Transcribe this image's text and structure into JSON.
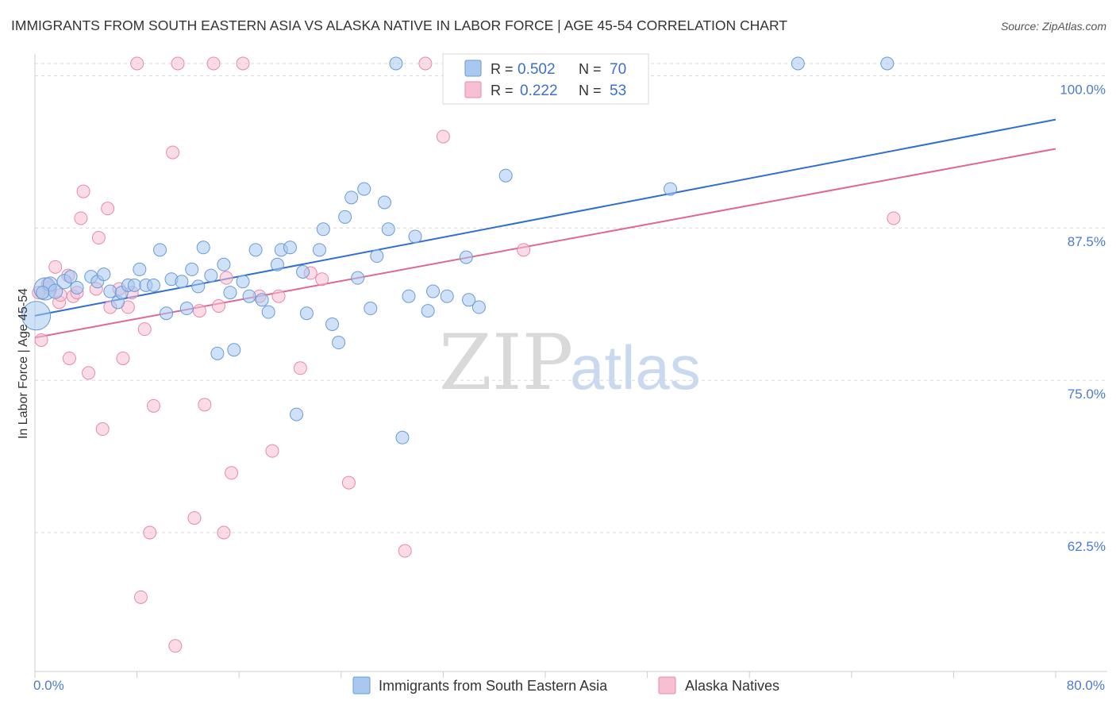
{
  "header": {
    "title": "IMMIGRANTS FROM SOUTH EASTERN ASIA VS ALASKA NATIVE IN LABOR FORCE | AGE 45-54 CORRELATION CHART",
    "source": "Source: ZipAtlas.com"
  },
  "watermark": {
    "zip": "ZIP",
    "atlas": "atlas"
  },
  "colors": {
    "blue": "#a8c8f0",
    "blue_edge": "#6a9ad8",
    "blue_line": "#2f6fd0",
    "pink": "#f7bfd2",
    "pink_edge": "#e58aaa",
    "pink_line": "#e06890",
    "grid": "#d8d8d8",
    "tick_text": "#4a7bd0"
  },
  "legend": {
    "rows": [
      {
        "r_label": "R =",
        "r_value": "0.502",
        "n_label": "N =",
        "n_value": "70"
      },
      {
        "r_label": "R =",
        "r_value": "0.222",
        "n_label": "N =",
        "n_value": "53"
      }
    ]
  },
  "chart_data": {
    "type": "scatter",
    "title": "IMMIGRANTS FROM SOUTH EASTERN ASIA VS ALASKA NATIVE IN LABOR FORCE | AGE 45-54 CORRELATION CHART",
    "xlabel": "",
    "ylabel": "In Labor Force | Age 45-54",
    "xlim": [
      0,
      80
    ],
    "ylim": [
      50,
      101.5
    ],
    "x_tick_labels": [
      "0.0%",
      "80.0%"
    ],
    "y_ticks": [
      62.5,
      75.0,
      87.5,
      100.0
    ],
    "y_tick_labels": [
      "62.5%",
      "75.0%",
      "87.5%",
      "100.0%"
    ],
    "grid": true,
    "legend_position": "top-center",
    "series": [
      {
        "name": "Immigrants from South Eastern Asia",
        "r": 0.502,
        "n": 70,
        "trend": {
          "x": [
            0,
            80
          ],
          "y": [
            80.3,
            96.4
          ]
        },
        "points": [
          {
            "x": 0.1,
            "y": 80.3,
            "s": 18
          },
          {
            "x": 0.8,
            "y": 82.5,
            "s": 14
          },
          {
            "x": 1.2,
            "y": 82.9,
            "s": 9
          },
          {
            "x": 1.6,
            "y": 82.3,
            "s": 9
          },
          {
            "x": 2.3,
            "y": 83.1,
            "s": 9
          },
          {
            "x": 2.8,
            "y": 83.5,
            "s": 8
          },
          {
            "x": 3.3,
            "y": 82.6,
            "s": 8
          },
          {
            "x": 4.4,
            "y": 83.5,
            "s": 8
          },
          {
            "x": 4.9,
            "y": 83.1,
            "s": 8
          },
          {
            "x": 5.4,
            "y": 83.7,
            "s": 8
          },
          {
            "x": 5.9,
            "y": 82.3,
            "s": 8
          },
          {
            "x": 6.5,
            "y": 81.4,
            "s": 8
          },
          {
            "x": 6.8,
            "y": 82.2,
            "s": 8
          },
          {
            "x": 7.3,
            "y": 82.8,
            "s": 8
          },
          {
            "x": 7.8,
            "y": 82.8,
            "s": 8
          },
          {
            "x": 8.2,
            "y": 84.1,
            "s": 8
          },
          {
            "x": 8.7,
            "y": 82.8,
            "s": 8
          },
          {
            "x": 9.3,
            "y": 82.8,
            "s": 8
          },
          {
            "x": 9.8,
            "y": 85.7,
            "s": 8
          },
          {
            "x": 10.3,
            "y": 80.5,
            "s": 8
          },
          {
            "x": 10.7,
            "y": 83.3,
            "s": 8
          },
          {
            "x": 11.5,
            "y": 83.1,
            "s": 8
          },
          {
            "x": 11.9,
            "y": 80.9,
            "s": 8
          },
          {
            "x": 12.3,
            "y": 84.1,
            "s": 8
          },
          {
            "x": 12.8,
            "y": 82.7,
            "s": 8
          },
          {
            "x": 13.2,
            "y": 85.9,
            "s": 8
          },
          {
            "x": 13.8,
            "y": 83.6,
            "s": 8
          },
          {
            "x": 14.3,
            "y": 77.2,
            "s": 8
          },
          {
            "x": 14.8,
            "y": 84.5,
            "s": 8
          },
          {
            "x": 15.3,
            "y": 82.2,
            "s": 8
          },
          {
            "x": 15.6,
            "y": 77.5,
            "s": 8
          },
          {
            "x": 16.3,
            "y": 83.1,
            "s": 8
          },
          {
            "x": 16.8,
            "y": 81.9,
            "s": 8
          },
          {
            "x": 17.3,
            "y": 85.7,
            "s": 8
          },
          {
            "x": 17.8,
            "y": 81.6,
            "s": 8
          },
          {
            "x": 18.3,
            "y": 80.6,
            "s": 8
          },
          {
            "x": 19.0,
            "y": 84.5,
            "s": 8
          },
          {
            "x": 19.3,
            "y": 85.7,
            "s": 8
          },
          {
            "x": 20.0,
            "y": 85.9,
            "s": 8
          },
          {
            "x": 20.5,
            "y": 72.2,
            "s": 8
          },
          {
            "x": 21.0,
            "y": 83.9,
            "s": 8
          },
          {
            "x": 21.3,
            "y": 80.5,
            "s": 8
          },
          {
            "x": 22.3,
            "y": 85.7,
            "s": 8
          },
          {
            "x": 22.6,
            "y": 87.4,
            "s": 8
          },
          {
            "x": 23.3,
            "y": 79.6,
            "s": 8
          },
          {
            "x": 23.8,
            "y": 78.1,
            "s": 8
          },
          {
            "x": 24.3,
            "y": 88.4,
            "s": 8
          },
          {
            "x": 24.8,
            "y": 90.0,
            "s": 8
          },
          {
            "x": 25.3,
            "y": 83.4,
            "s": 8
          },
          {
            "x": 25.8,
            "y": 90.7,
            "s": 8
          },
          {
            "x": 26.3,
            "y": 80.9,
            "s": 8
          },
          {
            "x": 26.8,
            "y": 85.2,
            "s": 8
          },
          {
            "x": 27.4,
            "y": 89.6,
            "s": 8
          },
          {
            "x": 27.7,
            "y": 87.4,
            "s": 8
          },
          {
            "x": 28.3,
            "y": 101.0,
            "s": 8
          },
          {
            "x": 28.8,
            "y": 70.3,
            "s": 8
          },
          {
            "x": 29.3,
            "y": 81.9,
            "s": 8
          },
          {
            "x": 29.8,
            "y": 86.8,
            "s": 8
          },
          {
            "x": 30.8,
            "y": 80.7,
            "s": 8
          },
          {
            "x": 31.2,
            "y": 82.3,
            "s": 8
          },
          {
            "x": 32.3,
            "y": 81.9,
            "s": 8
          },
          {
            "x": 32.6,
            "y": 101.0,
            "s": 8
          },
          {
            "x": 33.8,
            "y": 85.1,
            "s": 8
          },
          {
            "x": 34.0,
            "y": 81.6,
            "s": 8
          },
          {
            "x": 34.8,
            "y": 81.0,
            "s": 8
          },
          {
            "x": 36.9,
            "y": 91.8,
            "s": 8
          },
          {
            "x": 49.8,
            "y": 90.7,
            "s": 8
          },
          {
            "x": 59.8,
            "y": 101.0,
            "s": 8
          },
          {
            "x": 66.8,
            "y": 101.0,
            "s": 8
          },
          {
            "x": 0.6,
            "y": 82.2,
            "s": 8
          }
        ]
      },
      {
        "name": "Alaska Natives",
        "r": 0.222,
        "n": 53,
        "trend": {
          "x": [
            0,
            80
          ],
          "y": [
            78.5,
            94.0
          ]
        },
        "points": [
          {
            "x": 0.5,
            "y": 78.3,
            "s": 8
          },
          {
            "x": 1.1,
            "y": 82.6,
            "s": 8
          },
          {
            "x": 1.6,
            "y": 84.3,
            "s": 8
          },
          {
            "x": 1.9,
            "y": 81.4,
            "s": 8
          },
          {
            "x": 2.6,
            "y": 83.6,
            "s": 8
          },
          {
            "x": 2.7,
            "y": 76.8,
            "s": 8
          },
          {
            "x": 3.0,
            "y": 81.9,
            "s": 8
          },
          {
            "x": 3.3,
            "y": 82.2,
            "s": 8
          },
          {
            "x": 3.6,
            "y": 88.3,
            "s": 8
          },
          {
            "x": 3.8,
            "y": 90.5,
            "s": 8
          },
          {
            "x": 4.2,
            "y": 75.6,
            "s": 8
          },
          {
            "x": 4.8,
            "y": 82.5,
            "s": 8
          },
          {
            "x": 5.0,
            "y": 86.7,
            "s": 8
          },
          {
            "x": 5.3,
            "y": 71.0,
            "s": 8
          },
          {
            "x": 5.7,
            "y": 89.1,
            "s": 8
          },
          {
            "x": 5.9,
            "y": 81.0,
            "s": 8
          },
          {
            "x": 6.6,
            "y": 82.5,
            "s": 8
          },
          {
            "x": 6.9,
            "y": 76.8,
            "s": 8
          },
          {
            "x": 7.3,
            "y": 81.0,
            "s": 8
          },
          {
            "x": 7.6,
            "y": 82.2,
            "s": 8
          },
          {
            "x": 8.0,
            "y": 101.0,
            "s": 8
          },
          {
            "x": 8.3,
            "y": 57.2,
            "s": 8
          },
          {
            "x": 8.6,
            "y": 79.2,
            "s": 8
          },
          {
            "x": 9.0,
            "y": 62.5,
            "s": 8
          },
          {
            "x": 9.3,
            "y": 72.9,
            "s": 8
          },
          {
            "x": 10.8,
            "y": 93.7,
            "s": 8
          },
          {
            "x": 11.0,
            "y": 53.2,
            "s": 8
          },
          {
            "x": 11.2,
            "y": 101.0,
            "s": 8
          },
          {
            "x": 12.5,
            "y": 63.7,
            "s": 8
          },
          {
            "x": 12.9,
            "y": 80.7,
            "s": 8
          },
          {
            "x": 13.3,
            "y": 73.0,
            "s": 8
          },
          {
            "x": 14.0,
            "y": 101.0,
            "s": 8
          },
          {
            "x": 14.4,
            "y": 81.1,
            "s": 8
          },
          {
            "x": 14.8,
            "y": 62.5,
            "s": 8
          },
          {
            "x": 15.0,
            "y": 83.4,
            "s": 8
          },
          {
            "x": 15.4,
            "y": 67.4,
            "s": 8
          },
          {
            "x": 16.3,
            "y": 101.0,
            "s": 8
          },
          {
            "x": 17.6,
            "y": 81.9,
            "s": 8
          },
          {
            "x": 18.6,
            "y": 69.2,
            "s": 8
          },
          {
            "x": 19.1,
            "y": 81.9,
            "s": 8
          },
          {
            "x": 20.8,
            "y": 76.0,
            "s": 8
          },
          {
            "x": 21.6,
            "y": 83.8,
            "s": 8
          },
          {
            "x": 22.5,
            "y": 83.3,
            "s": 8
          },
          {
            "x": 24.6,
            "y": 66.6,
            "s": 8
          },
          {
            "x": 29.0,
            "y": 61.0,
            "s": 8
          },
          {
            "x": 30.6,
            "y": 101.0,
            "s": 8
          },
          {
            "x": 32.0,
            "y": 95.0,
            "s": 8
          },
          {
            "x": 38.3,
            "y": 85.7,
            "s": 8
          },
          {
            "x": 43.3,
            "y": 101.0,
            "s": 8
          },
          {
            "x": 67.3,
            "y": 88.3,
            "s": 8
          },
          {
            "x": 2.0,
            "y": 82.0,
            "s": 8
          },
          {
            "x": 1.0,
            "y": 82.9,
            "s": 8
          },
          {
            "x": 0.3,
            "y": 82.2,
            "s": 8
          }
        ]
      }
    ]
  }
}
